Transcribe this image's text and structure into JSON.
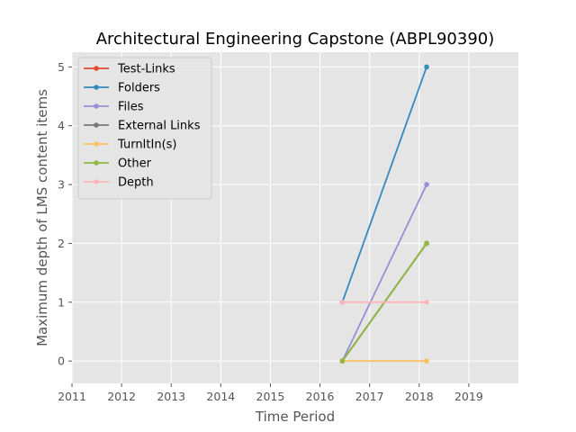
{
  "chart_data": {
    "type": "line",
    "title": "Architectural Engineering Capstone (ABPL90390)",
    "xlabel": "Time Period",
    "ylabel": "Maximum depth of LMS content items",
    "xlim": [
      2011,
      2020
    ],
    "ylim": [
      -0.38,
      5.25
    ],
    "x_ticks": [
      2011,
      2012,
      2013,
      2014,
      2015,
      2016,
      2017,
      2018,
      2019
    ],
    "y_ticks": [
      0,
      1,
      2,
      3,
      4,
      5
    ],
    "x_tick_labels": [
      "2011",
      "2012",
      "2013",
      "2014",
      "2015",
      "2016",
      "2017",
      "2018",
      "2019"
    ],
    "y_tick_labels": [
      "0",
      "1",
      "2",
      "3",
      "4",
      "5"
    ],
    "grid": true,
    "legend_position": "top-left",
    "x": [
      2016.45,
      2018.15
    ],
    "series": [
      {
        "name": "Test-Links",
        "color": "#E24A33",
        "values": [
          0,
          2
        ]
      },
      {
        "name": "Folders",
        "color": "#348ABD",
        "values": [
          1,
          5
        ]
      },
      {
        "name": "Files",
        "color": "#988ED5",
        "values": [
          0,
          3
        ]
      },
      {
        "name": "External Links",
        "color": "#777777",
        "values": [
          0,
          2
        ]
      },
      {
        "name": "TurnItIn(s)",
        "color": "#FBC15E",
        "values": [
          0,
          0
        ]
      },
      {
        "name": "Other",
        "color": "#8EBA42",
        "values": [
          0,
          2
        ]
      },
      {
        "name": "Depth",
        "color": "#FFB5B8",
        "values": [
          1,
          1
        ]
      }
    ]
  }
}
